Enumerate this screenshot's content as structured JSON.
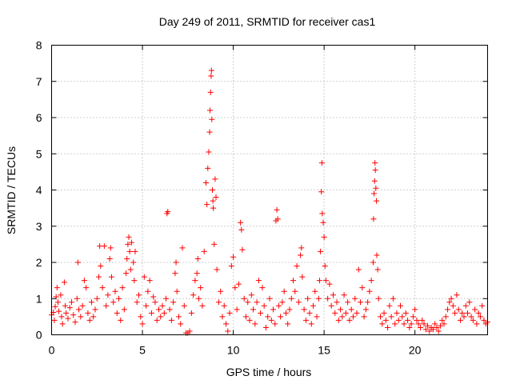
{
  "chart_data": {
    "type": "scatter",
    "title": "Day 249 of 2011, SRMTID for receiver cas1",
    "xlabel": "GPS time / hours",
    "ylabel": "SRMTID / TECUs",
    "xlim": [
      0,
      24
    ],
    "ylim": [
      0,
      8
    ],
    "xticks": [
      0,
      5,
      10,
      15,
      20
    ],
    "yticks": [
      0,
      1,
      2,
      3,
      4,
      5,
      6,
      7,
      8
    ],
    "grid": true,
    "marker": "plus",
    "series": [
      {
        "name": "SRMTID",
        "color": "#ff0000",
        "points": [
          [
            0.0,
            0.55
          ],
          [
            0.1,
            0.62
          ],
          [
            0.15,
            0.4
          ],
          [
            0.2,
            0.78
          ],
          [
            0.25,
            1.05
          ],
          [
            0.3,
            1.3
          ],
          [
            0.35,
            0.9
          ],
          [
            0.4,
            0.65
          ],
          [
            0.5,
            1.1
          ],
          [
            0.55,
            0.5
          ],
          [
            0.6,
            0.3
          ],
          [
            0.7,
            1.45
          ],
          [
            0.75,
            0.8
          ],
          [
            0.8,
            0.6
          ],
          [
            0.9,
            0.45
          ],
          [
            1.0,
            0.75
          ],
          [
            1.1,
            0.9
          ],
          [
            1.2,
            0.55
          ],
          [
            1.3,
            0.35
          ],
          [
            1.4,
            1.0
          ],
          [
            1.45,
            2.0
          ],
          [
            1.5,
            0.7
          ],
          [
            1.6,
            0.5
          ],
          [
            1.7,
            0.8
          ],
          [
            1.8,
            1.5
          ],
          [
            1.9,
            1.3
          ],
          [
            2.0,
            0.6
          ],
          [
            2.1,
            0.4
          ],
          [
            2.2,
            0.9
          ],
          [
            2.3,
            0.5
          ],
          [
            2.4,
            0.7
          ],
          [
            2.5,
            1.0
          ],
          [
            2.6,
            1.6
          ],
          [
            2.65,
            2.45
          ],
          [
            2.7,
            1.9
          ],
          [
            2.8,
            1.3
          ],
          [
            2.9,
            2.45
          ],
          [
            3.0,
            0.8
          ],
          [
            3.1,
            1.1
          ],
          [
            3.2,
            2.1
          ],
          [
            3.25,
            2.4
          ],
          [
            3.3,
            1.6
          ],
          [
            3.4,
            0.9
          ],
          [
            3.5,
            1.2
          ],
          [
            3.6,
            0.6
          ],
          [
            3.7,
            1.0
          ],
          [
            3.8,
            0.4
          ],
          [
            3.9,
            1.3
          ],
          [
            4.0,
            0.7
          ],
          [
            4.1,
            1.7
          ],
          [
            4.15,
            2.1
          ],
          [
            4.2,
            2.5
          ],
          [
            4.25,
            2.7
          ],
          [
            4.3,
            2.3
          ],
          [
            4.35,
            1.8
          ],
          [
            4.4,
            2.55
          ],
          [
            4.5,
            2.0
          ],
          [
            4.55,
            1.5
          ],
          [
            4.6,
            2.3
          ],
          [
            4.7,
            0.9
          ],
          [
            4.8,
            1.1
          ],
          [
            4.9,
            0.5
          ],
          [
            5.0,
            0.3
          ],
          [
            5.1,
            1.6
          ],
          [
            5.2,
            0.8
          ],
          [
            5.3,
            1.2
          ],
          [
            5.4,
            1.5
          ],
          [
            5.5,
            0.6
          ],
          [
            5.6,
            1.05
          ],
          [
            5.7,
            0.9
          ],
          [
            5.8,
            0.4
          ],
          [
            5.9,
            0.7
          ],
          [
            6.0,
            0.5
          ],
          [
            6.1,
            0.8
          ],
          [
            6.2,
            0.6
          ],
          [
            6.3,
            1.0
          ],
          [
            6.35,
            3.35
          ],
          [
            6.4,
            3.4
          ],
          [
            6.5,
            0.7
          ],
          [
            6.6,
            0.4
          ],
          [
            6.7,
            0.9
          ],
          [
            6.8,
            1.7
          ],
          [
            6.85,
            2.0
          ],
          [
            6.9,
            1.2
          ],
          [
            7.0,
            0.5
          ],
          [
            7.1,
            0.3
          ],
          [
            7.2,
            2.4
          ],
          [
            7.3,
            0.8
          ],
          [
            7.4,
            0.05
          ],
          [
            7.5,
            0.05
          ],
          [
            7.6,
            0.1
          ],
          [
            7.7,
            0.6
          ],
          [
            7.8,
            1.1
          ],
          [
            7.9,
            1.5
          ],
          [
            8.0,
            1.7
          ],
          [
            8.05,
            2.1
          ],
          [
            8.1,
            1.0
          ],
          [
            8.2,
            1.3
          ],
          [
            8.3,
            0.8
          ],
          [
            8.4,
            2.3
          ],
          [
            8.5,
            4.2
          ],
          [
            8.55,
            3.6
          ],
          [
            8.6,
            4.6
          ],
          [
            8.65,
            5.05
          ],
          [
            8.7,
            5.6
          ],
          [
            8.72,
            6.2
          ],
          [
            8.75,
            6.7
          ],
          [
            8.78,
            7.15
          ],
          [
            8.8,
            7.3
          ],
          [
            8.82,
            5.95
          ],
          [
            8.85,
            4.0
          ],
          [
            8.88,
            3.7
          ],
          [
            8.9,
            3.5
          ],
          [
            8.95,
            2.5
          ],
          [
            9.0,
            4.3
          ],
          [
            9.05,
            3.8
          ],
          [
            9.1,
            1.8
          ],
          [
            9.2,
            0.9
          ],
          [
            9.3,
            1.2
          ],
          [
            9.4,
            0.5
          ],
          [
            9.5,
            0.8
          ],
          [
            9.6,
            0.3
          ],
          [
            9.7,
            0.1
          ],
          [
            9.8,
            0.6
          ],
          [
            9.9,
            1.9
          ],
          [
            10.0,
            2.15
          ],
          [
            10.1,
            1.3
          ],
          [
            10.2,
            0.7
          ],
          [
            10.3,
            1.4
          ],
          [
            10.4,
            3.1
          ],
          [
            10.45,
            2.9
          ],
          [
            10.5,
            2.35
          ],
          [
            10.6,
            1.0
          ],
          [
            10.7,
            0.5
          ],
          [
            10.8,
            0.9
          ],
          [
            10.9,
            0.4
          ],
          [
            11.0,
            1.1
          ],
          [
            11.1,
            0.7
          ],
          [
            11.2,
            0.3
          ],
          [
            11.3,
            0.9
          ],
          [
            11.4,
            1.5
          ],
          [
            11.5,
            0.6
          ],
          [
            11.6,
            1.3
          ],
          [
            11.7,
            0.8
          ],
          [
            11.8,
            0.2
          ],
          [
            11.9,
            0.5
          ],
          [
            12.0,
            1.0
          ],
          [
            12.1,
            0.4
          ],
          [
            12.2,
            0.7
          ],
          [
            12.3,
            0.3
          ],
          [
            12.35,
            3.15
          ],
          [
            12.4,
            3.45
          ],
          [
            12.45,
            3.2
          ],
          [
            12.5,
            0.8
          ],
          [
            12.6,
            0.5
          ],
          [
            12.7,
            0.9
          ],
          [
            12.8,
            1.2
          ],
          [
            12.9,
            0.6
          ],
          [
            13.0,
            0.3
          ],
          [
            13.1,
            0.7
          ],
          [
            13.2,
            1.0
          ],
          [
            13.3,
            1.5
          ],
          [
            13.4,
            1.2
          ],
          [
            13.5,
            1.9
          ],
          [
            13.6,
            0.9
          ],
          [
            13.7,
            2.2
          ],
          [
            13.75,
            2.4
          ],
          [
            13.8,
            1.6
          ],
          [
            13.9,
            0.7
          ],
          [
            14.0,
            0.4
          ],
          [
            14.1,
            1.0
          ],
          [
            14.2,
            0.6
          ],
          [
            14.3,
            0.3
          ],
          [
            14.4,
            0.8
          ],
          [
            14.5,
            1.2
          ],
          [
            14.6,
            0.5
          ],
          [
            14.7,
            1.0
          ],
          [
            14.75,
            1.5
          ],
          [
            14.8,
            2.3
          ],
          [
            14.85,
            3.95
          ],
          [
            14.88,
            4.75
          ],
          [
            14.9,
            3.35
          ],
          [
            14.95,
            3.1
          ],
          [
            15.0,
            2.7
          ],
          [
            15.05,
            1.9
          ],
          [
            15.1,
            1.5
          ],
          [
            15.2,
            1.0
          ],
          [
            15.3,
            1.4
          ],
          [
            15.4,
            0.8
          ],
          [
            15.5,
            1.1
          ],
          [
            15.6,
            0.6
          ],
          [
            15.7,
            0.9
          ],
          [
            15.8,
            0.4
          ],
          [
            15.9,
            0.7
          ],
          [
            16.0,
            0.5
          ],
          [
            16.1,
            1.1
          ],
          [
            16.2,
            0.6
          ],
          [
            16.3,
            0.9
          ],
          [
            16.4,
            0.4
          ],
          [
            16.5,
            0.7
          ],
          [
            16.6,
            0.5
          ],
          [
            16.7,
            1.0
          ],
          [
            16.8,
            0.6
          ],
          [
            16.9,
            1.8
          ],
          [
            17.0,
            0.9
          ],
          [
            17.1,
            1.3
          ],
          [
            17.2,
            0.5
          ],
          [
            17.3,
            0.7
          ],
          [
            17.4,
            0.9
          ],
          [
            17.5,
            1.2
          ],
          [
            17.6,
            1.5
          ],
          [
            17.7,
            2.0
          ],
          [
            17.72,
            3.2
          ],
          [
            17.75,
            3.9
          ],
          [
            17.78,
            4.25
          ],
          [
            17.8,
            4.75
          ],
          [
            17.82,
            4.55
          ],
          [
            17.85,
            4.05
          ],
          [
            17.88,
            3.7
          ],
          [
            17.9,
            2.2
          ],
          [
            17.95,
            1.8
          ],
          [
            18.0,
            1.0
          ],
          [
            18.1,
            0.5
          ],
          [
            18.2,
            0.3
          ],
          [
            18.3,
            0.6
          ],
          [
            18.4,
            0.4
          ],
          [
            18.5,
            0.2
          ],
          [
            18.6,
            0.8
          ],
          [
            18.7,
            0.5
          ],
          [
            18.8,
            1.0
          ],
          [
            18.9,
            0.3
          ],
          [
            19.0,
            0.6
          ],
          [
            19.1,
            0.4
          ],
          [
            19.2,
            0.8
          ],
          [
            19.3,
            0.5
          ],
          [
            19.4,
            0.3
          ],
          [
            19.5,
            0.6
          ],
          [
            19.6,
            0.4
          ],
          [
            19.7,
            0.2
          ],
          [
            19.8,
            0.3
          ],
          [
            19.9,
            0.5
          ],
          [
            20.0,
            0.7
          ],
          [
            20.1,
            0.4
          ],
          [
            20.2,
            0.3
          ],
          [
            20.3,
            0.2
          ],
          [
            20.4,
            0.4
          ],
          [
            20.5,
            0.3
          ],
          [
            20.6,
            0.15
          ],
          [
            20.7,
            0.25
          ],
          [
            20.8,
            0.1
          ],
          [
            20.9,
            0.2
          ],
          [
            21.0,
            0.15
          ],
          [
            21.1,
            0.3
          ],
          [
            21.2,
            0.2
          ],
          [
            21.3,
            0.1
          ],
          [
            21.4,
            0.25
          ],
          [
            21.5,
            0.4
          ],
          [
            21.6,
            0.3
          ],
          [
            21.7,
            0.5
          ],
          [
            21.8,
            0.7
          ],
          [
            21.9,
            0.9
          ],
          [
            22.0,
            1.0
          ],
          [
            22.1,
            0.8
          ],
          [
            22.2,
            0.6
          ],
          [
            22.3,
            1.1
          ],
          [
            22.4,
            0.7
          ],
          [
            22.5,
            0.4
          ],
          [
            22.6,
            0.6
          ],
          [
            22.7,
            0.5
          ],
          [
            22.8,
            0.8
          ],
          [
            22.9,
            0.6
          ],
          [
            23.0,
            0.9
          ],
          [
            23.1,
            0.5
          ],
          [
            23.2,
            0.4
          ],
          [
            23.3,
            0.7
          ],
          [
            23.4,
            0.3
          ],
          [
            23.5,
            0.6
          ],
          [
            23.6,
            0.5
          ],
          [
            23.7,
            0.8
          ],
          [
            23.8,
            0.4
          ],
          [
            23.9,
            0.3
          ],
          [
            24.0,
            0.35
          ]
        ]
      }
    ]
  }
}
